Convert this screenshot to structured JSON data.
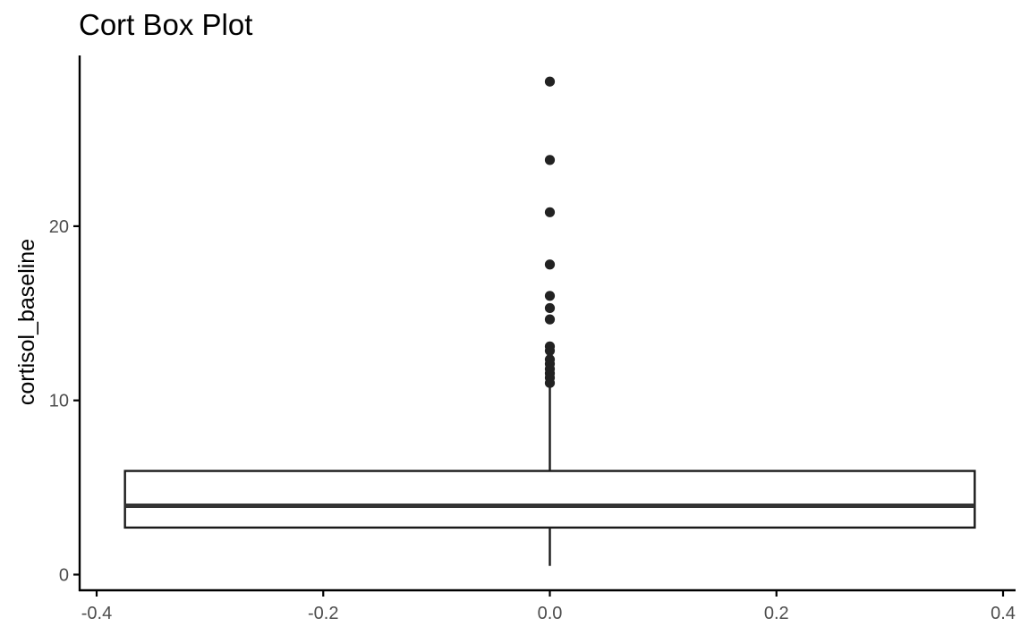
{
  "chart_data": {
    "type": "box",
    "title": "Cort Box Plot",
    "xlabel": "",
    "ylabel": "cortisol_baseline",
    "xlim": [
      -0.4,
      0.4
    ],
    "ylim": [
      -0.9,
      29.8
    ],
    "x_ticks": [
      -0.4,
      -0.2,
      0.0,
      0.2,
      0.4
    ],
    "x_tick_labels": [
      "-0.4",
      "-0.2",
      "0.0",
      "0.2",
      "0.4"
    ],
    "y_ticks": [
      0,
      10,
      20
    ],
    "y_tick_labels": [
      "0",
      "10",
      "20"
    ],
    "grid": false,
    "legend": "none",
    "box": {
      "x_center": 0.0,
      "x_min": -0.375,
      "x_max": 0.375,
      "whisker_low": 0.5,
      "q1": 2.7,
      "median": 3.95,
      "q3": 5.95,
      "whisker_high": 11.0
    },
    "outliers": [
      28.3,
      23.8,
      20.8,
      17.8,
      16.0,
      15.3,
      14.65,
      13.1,
      12.85,
      12.35,
      12.1,
      11.8,
      11.55,
      11.3,
      11.0
    ],
    "colors": {
      "box_fill": "#ffffff",
      "box_stroke": "#1a1a1a",
      "median": "#333333",
      "points": "#222222",
      "axis": "#000000",
      "tick_label": "#4d4d4d"
    }
  }
}
